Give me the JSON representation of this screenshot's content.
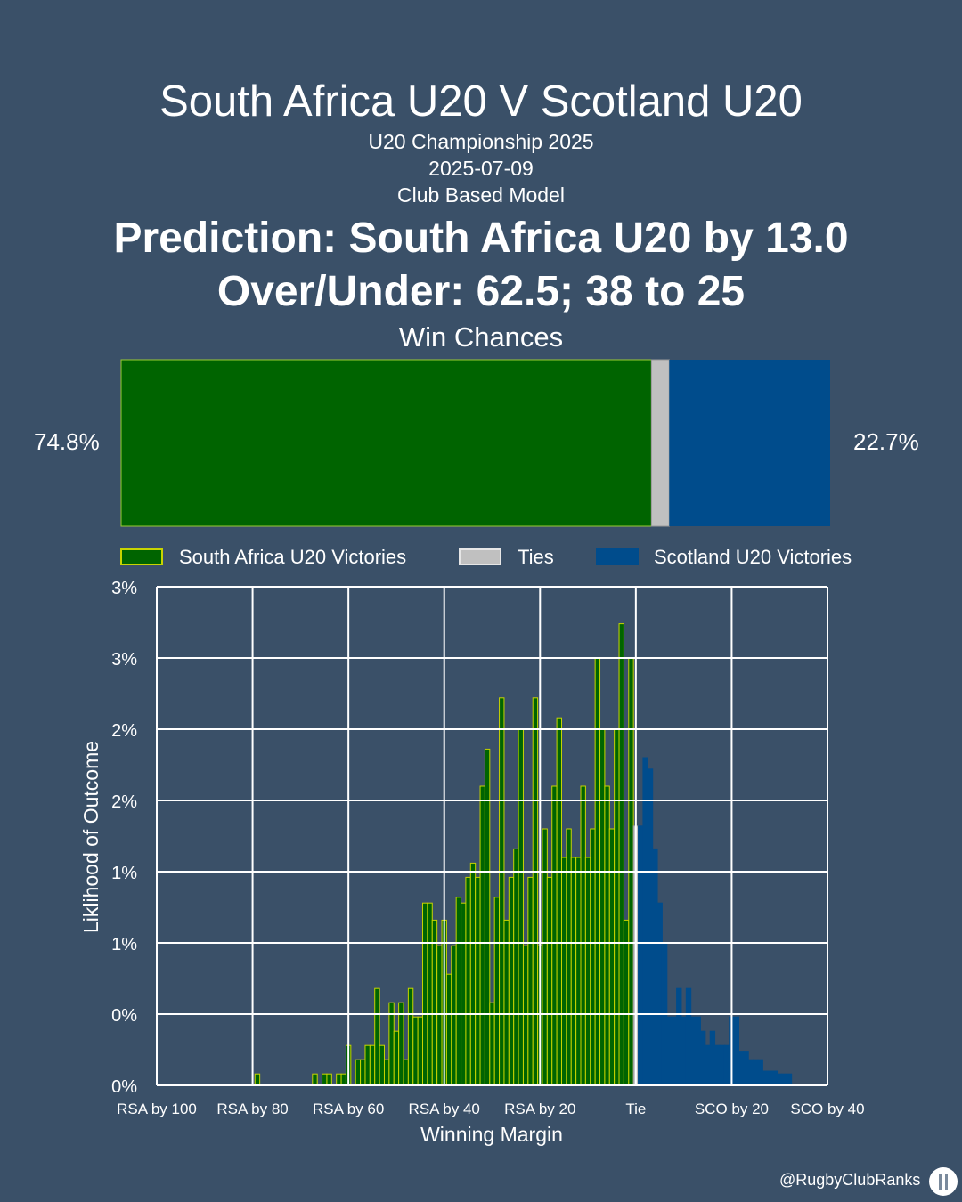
{
  "header": {
    "title": "South Africa U20 V Scotland U20",
    "competition": "U20 Championship 2025",
    "date": "2025-07-09",
    "model": "Club Based Model",
    "prediction": "Prediction: South Africa U20 by 13.0",
    "over_under": "Over/Under: 62.5; 38 to 25"
  },
  "win_chances": {
    "title": "Win Chances",
    "home_pct": 74.8,
    "tie_pct": 2.5,
    "away_pct": 22.7,
    "home_label": "74.8%",
    "away_label": "22.7%",
    "home_color": "#006400",
    "home_edge": "#9acd32",
    "tie_color": "#c0c0c0",
    "away_color": "#004c8c"
  },
  "legend": {
    "home": "South Africa U20 Victories",
    "tie": "Ties",
    "away": "Scotland U20 Victories"
  },
  "chart_data": {
    "type": "bar",
    "xlabel": "Winning Margin",
    "ylabel": "Liklihood of Outcome",
    "xlim": [
      -100,
      40
    ],
    "ylim": [
      0,
      3.5
    ],
    "xticks": [
      -100,
      -80,
      -60,
      -40,
      -20,
      0,
      20,
      40
    ],
    "xtick_labels": [
      "RSA by 100",
      "RSA by 80",
      "RSA by 60",
      "RSA by 40",
      "RSA by 20",
      "Tie",
      "SCO by 20",
      "SCO by 40"
    ],
    "yticks": [
      0,
      0.5,
      1,
      1.5,
      2,
      2.5,
      3,
      3.5
    ],
    "ytick_labels": [
      "0%",
      "0%",
      "1%",
      "1%",
      "2%",
      "2%",
      "3%",
      "3%"
    ],
    "grid": true,
    "series": [
      {
        "name": "South Africa U20 Victories",
        "x": [
          -79,
          -67,
          -65,
          -64,
          -62,
          -61,
          -60,
          -58,
          -57,
          -56,
          -55,
          -54,
          -53,
          -52,
          -51,
          -50,
          -49,
          -48,
          -47,
          -46,
          -45,
          -44,
          -43,
          -42,
          -41,
          -40,
          -39,
          -38,
          -37,
          -36,
          -35,
          -34,
          -33,
          -32,
          -31,
          -30,
          -29,
          -28,
          -27,
          -26,
          -25,
          -24,
          -23,
          -22,
          -21,
          -20,
          -19,
          -18,
          -17,
          -16,
          -15,
          -14,
          -13,
          -12,
          -11,
          -10,
          -9,
          -8,
          -7,
          -6,
          -5,
          -4,
          -3,
          -2,
          -1
        ],
        "values": [
          0.08,
          0.08,
          0.08,
          0.08,
          0.08,
          0.08,
          0.28,
          0.18,
          0.18,
          0.28,
          0.28,
          0.68,
          0.28,
          0.18,
          0.58,
          0.38,
          0.58,
          0.18,
          0.68,
          0.48,
          0.48,
          1.28,
          1.28,
          1.16,
          0.98,
          1.16,
          0.78,
          0.98,
          1.32,
          1.28,
          1.46,
          1.56,
          1.46,
          2.1,
          2.36,
          0.58,
          1.32,
          2.72,
          1.16,
          1.46,
          1.66,
          2.5,
          0.98,
          1.46,
          2.72,
          0.98,
          1.8,
          1.46,
          2.1,
          2.58,
          1.6,
          1.8,
          1.6,
          1.6,
          2.1,
          1.6,
          1.8,
          3.0,
          2.5,
          2.1,
          1.8,
          2.5,
          3.24,
          1.16,
          3.0
        ]
      },
      {
        "name": "Ties",
        "x": [
          0
        ],
        "values": [
          1.82
        ]
      },
      {
        "name": "Scotland U20 Victories",
        "x": [
          1,
          2,
          3,
          4,
          5,
          6,
          7,
          8,
          9,
          10,
          11,
          12,
          13,
          14,
          15,
          16,
          17,
          18,
          19,
          20,
          21,
          22,
          23,
          24,
          25,
          26,
          27,
          28,
          29,
          30,
          31,
          32
        ],
        "values": [
          1.82,
          2.3,
          2.22,
          1.66,
          1.28,
          1.0,
          0.48,
          0.48,
          0.68,
          0.48,
          0.68,
          0.48,
          0.48,
          0.38,
          0.28,
          0.38,
          0.28,
          0.28,
          0.28,
          0.48,
          0.48,
          0.24,
          0.24,
          0.18,
          0.18,
          0.18,
          0.1,
          0.1,
          0.1,
          0.08,
          0.08,
          0.08
        ]
      }
    ]
  },
  "credit": "@RugbyClubRanks"
}
